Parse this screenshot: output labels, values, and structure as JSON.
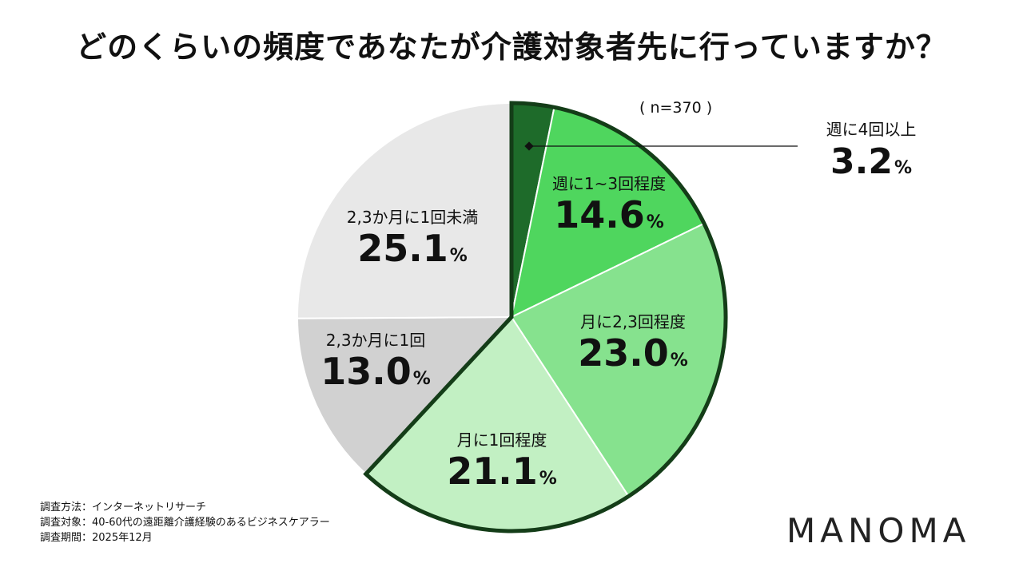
{
  "title": "どのくらいの頻度であなたが介護対象者先に行っていますか？",
  "sample_size": "( n=370 )",
  "chart_data": {
    "type": "pie",
    "title": "どのくらいの頻度であなたが介護対象者先に行っていますか？",
    "unit": "%",
    "start": "12 o'clock",
    "direction": "clockwise",
    "slices": [
      {
        "label": "週に4回以上",
        "value": 3.2,
        "value_text": "3.2",
        "color": "#1e6b2a",
        "group": "visit"
      },
      {
        "label": "週に1~3回程度",
        "value": 14.6,
        "value_text": "14.6",
        "color": "#4fd65e",
        "group": "visit"
      },
      {
        "label": "月に2,3回程度",
        "value": 23.0,
        "value_text": "23.0",
        "color": "#86e28e",
        "group": "visit"
      },
      {
        "label": "月に1回程度",
        "value": 21.1,
        "value_text": "21.1",
        "color": "#c2f0c3",
        "group": "visit"
      },
      {
        "label": "2,3か月に1回",
        "value": 13.0,
        "value_text": "13.0",
        "color": "#d1d1d1",
        "group": "rare"
      },
      {
        "label": "2,3か月に1回未満",
        "value": 25.1,
        "value_text": "25.1",
        "color": "#e8e8e8",
        "group": "rare"
      }
    ],
    "highlight_outline_color": "#143d18"
  },
  "footnotes": [
    "調査方法：インターネットリサーチ",
    "調査対象：40-60代の遠距離介護経験のあるビジネスケアラー",
    "調査期間：2025年12月"
  ],
  "brand": "MANOMA"
}
